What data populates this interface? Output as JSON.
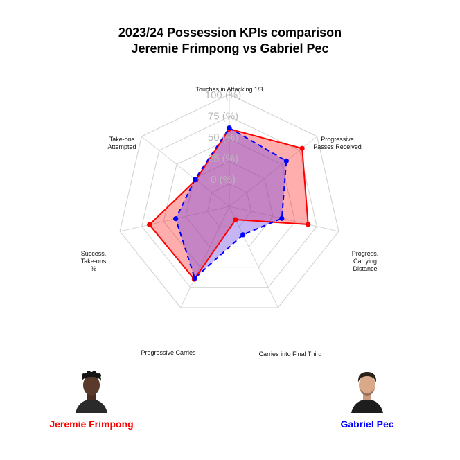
{
  "title": {
    "line1": "2023/24 Possession KPIs comparison",
    "line2": "Jeremie Frimpong vs Gabriel Pec"
  },
  "chart_data": {
    "type": "radar",
    "axes": [
      "Touches in Attacking 1/3",
      "Progressive Passes Received",
      "Progress. Carrying Distance",
      "Carries into Final Third",
      "Progressive Carries",
      "Success. Take-ons %",
      "Take-ons Attempted"
    ],
    "axis_label_lines": [
      [
        "Touches in Attacking 1/3"
      ],
      [
        "Progressive",
        "Passes Received"
      ],
      [
        "Progress.",
        "Carrying",
        "Distance"
      ],
      [
        "Carries into Final Third"
      ],
      [
        "Progressive Carries"
      ],
      [
        "Success.",
        "Take-ons",
        "%"
      ],
      [
        "Take-ons",
        "Attempted"
      ]
    ],
    "ticks": [
      "0 (%)",
      "25 (%)",
      "50 (%)",
      "75 (%)",
      "100 (%)"
    ],
    "range": [
      0,
      100
    ],
    "series": [
      {
        "name": "Jeremie Frimpong",
        "color": "#ff0000",
        "fill": "rgba(255,0,0,0.32)",
        "line": "solid",
        "values": [
          69,
          83,
          72,
          13,
          72,
          73,
          38
        ]
      },
      {
        "name": "Gabriel Pec",
        "color": "#0000ff",
        "fill": "rgba(110,70,230,0.40)",
        "line": "dashed",
        "values": [
          70,
          65,
          48,
          28,
          71,
          49,
          39
        ]
      }
    ]
  },
  "players": [
    {
      "name": "Jeremie Frimpong",
      "color": "#ff0000"
    },
    {
      "name": "Gabriel Pec",
      "color": "#0000ff"
    }
  ]
}
